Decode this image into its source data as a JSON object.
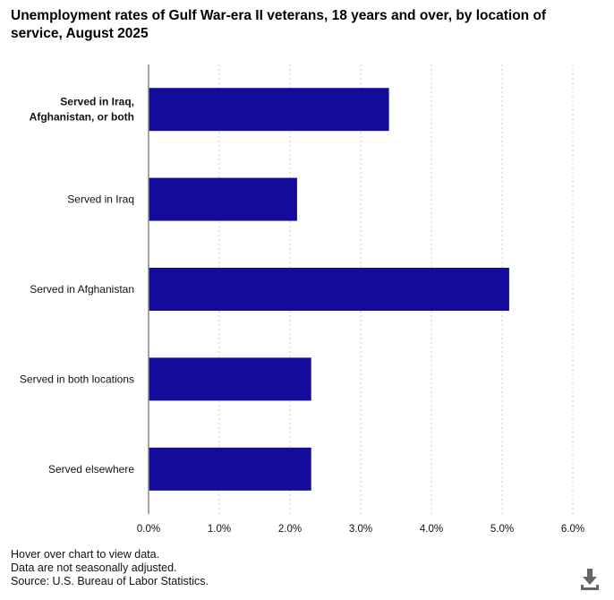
{
  "title": "Unemployment rates of Gulf War-era II veterans, 18 years and over, by location of service, August 2025",
  "chart_data": {
    "type": "bar",
    "orientation": "horizontal",
    "categories": [
      "Served in Iraq, Afghanistan, or both",
      "Served in Iraq",
      "Served in Afghanistan",
      "Served in both locations",
      "Served elsewhere"
    ],
    "category_label_lines": [
      [
        "Served in Iraq,",
        "Afghanistan, or both"
      ],
      [
        "Served in Iraq"
      ],
      [
        "Served in Afghanistan"
      ],
      [
        "Served in both locations"
      ],
      [
        "Served elsewhere"
      ]
    ],
    "values": [
      3.4,
      2.1,
      5.1,
      2.3,
      2.3
    ],
    "xlim": [
      0,
      6
    ],
    "xticks": [
      "0.0%",
      "1.0%",
      "2.0%",
      "3.0%",
      "4.0%",
      "5.0%",
      "6.0%"
    ],
    "xlabel": "",
    "ylabel": "",
    "grid": "vertical dotted",
    "bar_color": "#130C9A"
  },
  "footnotes": [
    "Hover over chart to view data.",
    "Data are not seasonally adjusted.",
    "Source: U.S. Bureau of Labor Statistics."
  ],
  "download_icon": "download-icon"
}
